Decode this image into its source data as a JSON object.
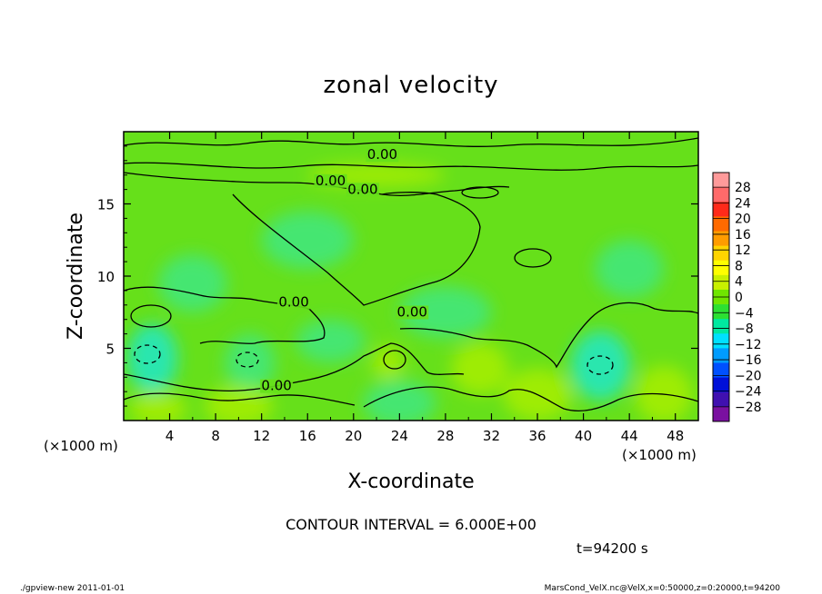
{
  "chart_data": {
    "type": "heatmap",
    "title": "zonal velocity",
    "xlabel": "X-coordinate",
    "ylabel": "Z-coordinate",
    "x_unit": "(×1000 m)",
    "y_unit": "(×1000 m)",
    "xlim": [
      0,
      50
    ],
    "ylim": [
      0,
      20
    ],
    "x_ticks": [
      "4",
      "8",
      "12",
      "16",
      "20",
      "24",
      "28",
      "32",
      "36",
      "40",
      "44",
      "48"
    ],
    "y_ticks": [
      "5",
      "10",
      "15"
    ],
    "x_tick_values": [
      4,
      8,
      12,
      16,
      20,
      24,
      28,
      32,
      36,
      40,
      44,
      48
    ],
    "y_tick_values": [
      5,
      10,
      15
    ],
    "contour_labels": [
      {
        "text": "0.00",
        "x": 22.5,
        "z": 18.1
      },
      {
        "text": "0.00",
        "x": 18.0,
        "z": 16.3
      },
      {
        "text": "0.00",
        "x": 20.8,
        "z": 15.7
      },
      {
        "text": "0.00",
        "x": 14.8,
        "z": 7.9
      },
      {
        "text": "0.00",
        "x": 25.1,
        "z": 7.2
      },
      {
        "text": "0.00",
        "x": 13.3,
        "z": 2.1
      }
    ],
    "contour_interval_text": "CONTOUR INTERVAL = 6.000E+00",
    "time_text": "t=94200 s",
    "colorbar": {
      "levels": [
        "28",
        "24",
        "20",
        "16",
        "12",
        "8",
        "4",
        "0",
        "−4",
        "−8",
        "−12",
        "−16",
        "−20",
        "−24",
        "−28"
      ],
      "colors": [
        "#ff9a9a",
        "#ff6a6a",
        "#ff2a1a",
        "#ff6a00",
        "#ff9c00",
        "#ffd400",
        "#ffff00",
        "#c9f000",
        "#6fe600",
        "#2ce032",
        "#00e8a0",
        "#00e0ff",
        "#009cff",
        "#0050ff",
        "#0010d8",
        "#4010b0",
        "#7a10a0"
      ]
    },
    "field_colors": {
      "base": "#66e01a",
      "positive": "#a8ee00",
      "negative": "#3fe880",
      "strong_negative": "#1fe8c8"
    },
    "grid": false
  },
  "footer": {
    "left": "./gpview-new  2011-01-01",
    "right": "MarsCond_VelX.nc@VelX,x=0:50000,z=0:20000,t=94200"
  }
}
